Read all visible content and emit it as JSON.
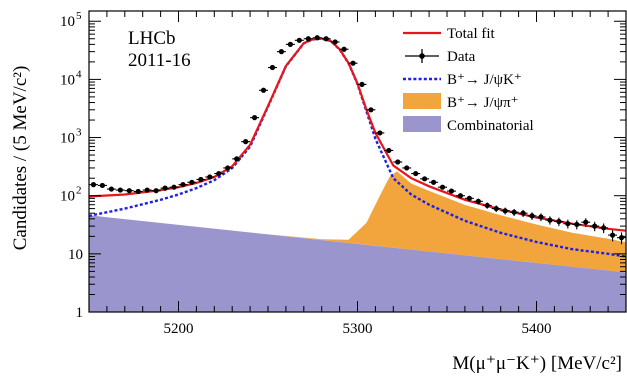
{
  "chart_data": {
    "type": "line",
    "log_y": true,
    "xlim": [
      5150,
      5450
    ],
    "ylim": [
      1,
      150000
    ],
    "x_ticks": [
      5200,
      5300,
      5400
    ],
    "y_ticks": [
      {
        "value": 1,
        "label": "1",
        "exp": ""
      },
      {
        "value": 10,
        "label": "10",
        "exp": ""
      },
      {
        "value": 100,
        "label": "10",
        "exp": "2"
      },
      {
        "value": 1000,
        "label": "10",
        "exp": "3"
      },
      {
        "value": 10000,
        "label": "10",
        "exp": "4"
      },
      {
        "value": 100000,
        "label": "10",
        "exp": "5"
      }
    ],
    "xlabel": "M(μ⁺μ⁻K⁺) [MeV/c²]",
    "ylabel": "Candidates / (5 MeV/c²)",
    "annotations": [
      "LHCb",
      "2011-16"
    ],
    "legend_position": "top-right",
    "legend": [
      {
        "key": "total",
        "label": "Total fit"
      },
      {
        "key": "data",
        "label": "Data"
      },
      {
        "key": "signal",
        "label": "B⁺→ J/ψK⁺"
      },
      {
        "key": "misid",
        "label": "B⁺→ J/ψπ⁺"
      },
      {
        "key": "comb",
        "label": "Combinatorial"
      }
    ],
    "colors": {
      "total": "#e8161b",
      "data": "#000000",
      "signal": "#1f1fe6",
      "misid": "#f2a53c",
      "comb": "#9a95cc"
    },
    "series": [
      {
        "key": "total",
        "x": [
          5150,
          5170,
          5190,
          5200,
          5210,
          5220,
          5230,
          5240,
          5250,
          5260,
          5270,
          5275,
          5280,
          5285,
          5290,
          5295,
          5300,
          5305,
          5310,
          5320,
          5330,
          5340,
          5360,
          5380,
          5400,
          5420,
          5440,
          5450
        ],
        "y": [
          97,
          105,
          125,
          140,
          165,
          210,
          320,
          750,
          3500,
          17000,
          42000,
          49000,
          50500,
          46000,
          33000,
          19000,
          8500,
          3000,
          1200,
          330,
          200,
          145,
          85,
          58,
          42,
          33,
          27,
          25
        ]
      },
      {
        "key": "signal",
        "x": [
          5150,
          5170,
          5190,
          5200,
          5210,
          5220,
          5230,
          5240,
          5250,
          5260,
          5270,
          5275,
          5280,
          5285,
          5290,
          5295,
          5300,
          5305,
          5310,
          5320,
          5330,
          5340,
          5360,
          5380,
          5400,
          5420,
          5440,
          5450
        ],
        "y": [
          45,
          60,
          85,
          105,
          135,
          185,
          300,
          700,
          3400,
          16800,
          41800,
          48800,
          50200,
          45800,
          32800,
          18800,
          8300,
          2800,
          950,
          200,
          105,
          70,
          37,
          23,
          16,
          12,
          10,
          9
        ]
      },
      {
        "key": "misid",
        "x": [
          5150,
          5250,
          5280,
          5295,
          5305,
          5312,
          5318,
          5322,
          5330,
          5340,
          5360,
          5380,
          5400,
          5420,
          5440,
          5450
        ],
        "y": [
          0,
          0,
          0.5,
          2,
          20,
          80,
          200,
          250,
          150,
          110,
          60,
          38,
          25,
          17,
          13,
          11
        ]
      },
      {
        "key": "comb",
        "x": [
          5150,
          5450
        ],
        "y": [
          46,
          4.8
        ]
      },
      {
        "key": "data",
        "x": [
          5152.5,
          5157.5,
          5162.5,
          5167.5,
          5172.5,
          5177.5,
          5182.5,
          5187.5,
          5192.5,
          5197.5,
          5202.5,
          5207.5,
          5212.5,
          5217.5,
          5222.5,
          5227.5,
          5232.5,
          5237.5,
          5242.5,
          5247.5,
          5252.5,
          5257.5,
          5262.5,
          5267.5,
          5272.5,
          5277.5,
          5282.5,
          5287.5,
          5292.5,
          5297.5,
          5302.5,
          5307.5,
          5312.5,
          5317.5,
          5322.5,
          5327.5,
          5332.5,
          5337.5,
          5342.5,
          5347.5,
          5352.5,
          5357.5,
          5362.5,
          5367.5,
          5372.5,
          5377.5,
          5382.5,
          5387.5,
          5392.5,
          5397.5,
          5402.5,
          5407.5,
          5412.5,
          5417.5,
          5422.5,
          5427.5,
          5432.5,
          5437.5,
          5442.5,
          5447.5
        ],
        "y": [
          155,
          150,
          130,
          125,
          122,
          118,
          125,
          122,
          135,
          140,
          155,
          170,
          190,
          210,
          240,
          300,
          430,
          850,
          2200,
          6500,
          16000,
          30000,
          40000,
          47000,
          50000,
          52000,
          50000,
          44000,
          33000,
          19000,
          8200,
          3000,
          1200,
          600,
          380,
          300,
          240,
          195,
          170,
          140,
          120,
          100,
          90,
          80,
          68,
          60,
          55,
          52,
          50,
          45,
          43,
          38,
          36,
          33,
          32,
          35,
          30,
          28,
          21,
          19
        ]
      }
    ]
  }
}
